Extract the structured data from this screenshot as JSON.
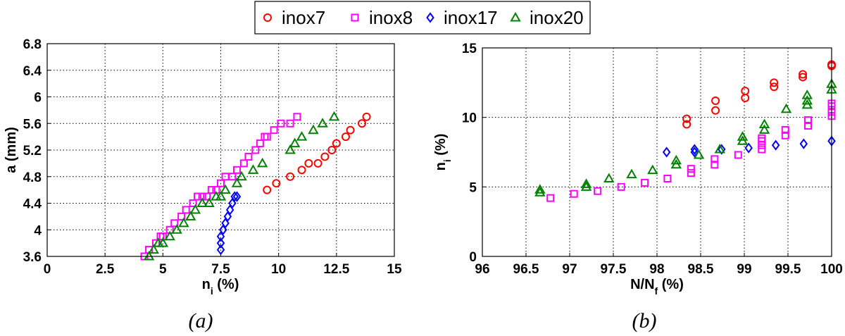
{
  "legend": {
    "entries": [
      {
        "name": "inox7",
        "marker": "circle",
        "color": "#ff0000"
      },
      {
        "name": "inox8",
        "marker": "square",
        "color": "#ff00ff"
      },
      {
        "name": "inox17",
        "marker": "diamond",
        "color": "#0000ff"
      },
      {
        "name": "inox20",
        "marker": "triangle",
        "color": "#008000"
      }
    ]
  },
  "chart_data": [
    {
      "type": "scatter",
      "caption": "(a)",
      "xlabel_main": "n",
      "xlabel_sub": "i",
      "xlabel_tail": " (%)",
      "ylabel": "a (mm)",
      "xlim": [
        0,
        15
      ],
      "ylim": [
        3.6,
        6.8
      ],
      "xticks": [
        0,
        2.5,
        5,
        7.5,
        10,
        12.5,
        15
      ],
      "xtick_labels": [
        "0",
        "2.5",
        "5",
        "7.5",
        "10",
        "12.5",
        "15"
      ],
      "yticks": [
        3.6,
        4.0,
        4.4,
        4.8,
        5.2,
        5.6,
        6.0,
        6.4,
        6.8
      ],
      "ytick_labels": [
        "3.6",
        "4",
        "4.4",
        "4.8",
        "5.2",
        "5.6",
        "6",
        "6.4",
        "6.8"
      ],
      "grid": true,
      "series": [
        {
          "name": "inox7",
          "marker": "circle",
          "color": "#ff0000",
          "x": [
            9.5,
            9.9,
            10.5,
            11.0,
            11.3,
            11.7,
            12.0,
            12.3,
            12.5,
            12.9,
            13.1,
            13.6,
            13.8
          ],
          "y": [
            4.6,
            4.7,
            4.8,
            4.9,
            5.0,
            5.0,
            5.1,
            5.2,
            5.3,
            5.4,
            5.5,
            5.6,
            5.7
          ]
        },
        {
          "name": "inox8",
          "marker": "square",
          "color": "#ff00ff",
          "x": [
            4.2,
            4.4,
            4.7,
            4.9,
            5.0,
            5.3,
            5.5,
            5.8,
            6.0,
            6.3,
            6.5,
            6.7,
            6.9,
            7.1,
            7.3,
            7.5,
            7.7,
            8.0,
            8.2,
            8.5,
            8.7,
            9.0,
            9.2,
            9.4,
            9.5,
            9.8,
            10.1,
            10.5,
            10.8
          ],
          "y": [
            3.6,
            3.7,
            3.8,
            3.9,
            3.9,
            4.0,
            4.1,
            4.2,
            4.3,
            4.4,
            4.5,
            4.5,
            4.5,
            4.6,
            4.6,
            4.7,
            4.8,
            4.8,
            4.9,
            5.0,
            5.1,
            5.2,
            5.3,
            5.4,
            5.4,
            5.5,
            5.6,
            5.6,
            5.7
          ]
        },
        {
          "name": "inox17",
          "marker": "diamond",
          "color": "#0000ff",
          "x": [
            7.5,
            7.5,
            7.5,
            7.6,
            7.7,
            7.8,
            7.9,
            8.0,
            8.1,
            8.2
          ],
          "y": [
            3.7,
            3.8,
            3.9,
            4.0,
            4.1,
            4.2,
            4.3,
            4.4,
            4.5,
            4.5
          ]
        },
        {
          "name": "inox20",
          "marker": "triangle",
          "color": "#008000",
          "x": [
            4.4,
            4.6,
            4.8,
            5.0,
            5.3,
            5.6,
            5.9,
            6.2,
            6.4,
            6.7,
            7.0,
            7.3,
            7.5,
            7.7,
            8.2,
            8.4,
            8.9,
            9.3,
            10.5,
            10.7,
            11.0,
            11.5,
            11.9,
            12.4
          ],
          "y": [
            3.6,
            3.7,
            3.8,
            3.8,
            3.9,
            4.0,
            4.1,
            4.2,
            4.3,
            4.4,
            4.4,
            4.5,
            4.5,
            4.6,
            4.7,
            4.8,
            4.9,
            5.0,
            5.2,
            5.3,
            5.4,
            5.5,
            5.6,
            5.7
          ]
        }
      ]
    },
    {
      "type": "scatter",
      "caption": "(b)",
      "xlabel_main": "N/N",
      "xlabel_sub": "f",
      "xlabel_tail": " (%)",
      "ylabel_main": "n",
      "ylabel_sub": "i",
      "ylabel_tail": " (%)",
      "xlim": [
        96,
        100
      ],
      "ylim": [
        0,
        15
      ],
      "xticks": [
        96,
        96.5,
        97,
        97.5,
        98,
        98.5,
        99,
        99.5,
        100
      ],
      "xtick_labels": [
        "96",
        "96.5",
        "97",
        "97.5",
        "98",
        "98.5",
        "99",
        "99.5",
        "100"
      ],
      "yticks": [
        0,
        5,
        10,
        15
      ],
      "ytick_labels": [
        "0",
        "5",
        "10",
        "15"
      ],
      "grid": true,
      "series": [
        {
          "name": "inox7",
          "marker": "circle",
          "color": "#ff0000",
          "x": [
            98.34,
            98.34,
            98.67,
            98.67,
            99.01,
            99.01,
            99.34,
            99.34,
            99.67,
            99.67,
            100,
            100
          ],
          "y": [
            9.5,
            9.9,
            10.5,
            11.2,
            11.4,
            11.9,
            12.2,
            12.5,
            12.9,
            13.1,
            13.7,
            13.8
          ]
        },
        {
          "name": "inox8",
          "marker": "square",
          "color": "#ff00ff",
          "x": [
            96.78,
            97.05,
            97.32,
            97.59,
            97.86,
            98.12,
            98.39,
            98.39,
            98.66,
            98.66,
            98.93,
            99.2,
            99.2,
            99.2,
            99.2,
            99.47,
            99.47,
            99.73,
            99.73,
            100,
            100,
            100,
            100
          ],
          "y": [
            4.2,
            4.5,
            4.7,
            5.0,
            5.3,
            5.6,
            6.0,
            6.3,
            6.6,
            7.0,
            7.3,
            7.7,
            8.0,
            8.3,
            8.5,
            8.7,
            9.1,
            9.4,
            9.8,
            10.1,
            10.4,
            10.8,
            11.0
          ]
        },
        {
          "name": "inox17",
          "marker": "diamond",
          "color": "#0000ff",
          "x": [
            98.11,
            98.43,
            98.43,
            98.74,
            99.05,
            99.36,
            99.68,
            100
          ],
          "y": [
            7.5,
            7.5,
            7.7,
            7.7,
            7.8,
            8.0,
            8.1,
            8.3
          ]
        },
        {
          "name": "inox20",
          "marker": "triangle",
          "color": "#008000",
          "x": [
            96.66,
            96.66,
            97.19,
            97.19,
            97.45,
            97.71,
            97.95,
            98.22,
            98.22,
            98.48,
            98.72,
            98.98,
            98.98,
            99.23,
            99.23,
            99.48,
            99.72,
            99.72,
            99.72,
            100,
            100
          ],
          "y": [
            4.6,
            4.8,
            5.0,
            5.2,
            5.6,
            5.9,
            6.2,
            6.6,
            6.9,
            7.3,
            7.7,
            8.3,
            8.6,
            9.1,
            9.5,
            10.6,
            10.9,
            11.2,
            11.6,
            12.0,
            12.4
          ]
        }
      ]
    }
  ]
}
